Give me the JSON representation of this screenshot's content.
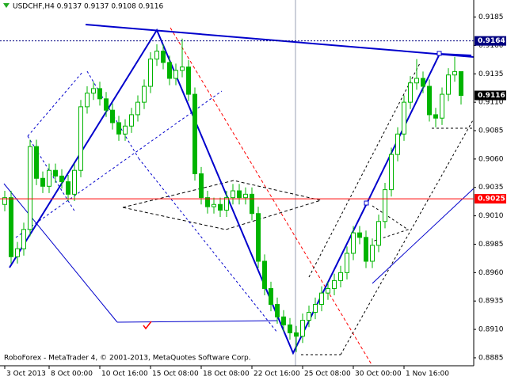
{
  "chart_data": {
    "type": "candlestick",
    "title": "USDCHF,H4 0.9137 0.9137 0.9108 0.9116",
    "footer": "RoboForex - MetaTrader 4, © 2001-2013, MetaQuotes Software Corp.",
    "up_color": "#00b400",
    "down_color": "#00b400",
    "open": [
      0.902,
      0.9026,
      0.8974,
      0.8981,
      0.8998,
      0.9071,
      0.9043,
      0.9036,
      0.905,
      0.9045,
      0.904,
      0.9029,
      0.905,
      0.9106,
      0.9118,
      0.9122,
      0.9113,
      0.9103,
      0.9092,
      0.9082,
      0.9089,
      0.9099,
      0.911,
      0.9124,
      0.9148,
      0.9155,
      0.9145,
      0.9131,
      0.9138,
      0.9141,
      0.9117,
      0.9047,
      0.9026,
      0.9018,
      0.902,
      0.9015,
      0.9026,
      0.9032,
      0.9026,
      0.9029,
      0.9012,
      0.897,
      0.8946,
      0.8932,
      0.8921,
      0.8914,
      0.8907,
      0.8904,
      0.8918,
      0.8925,
      0.8932,
      0.8942,
      0.8946,
      0.8953,
      0.896,
      0.8977,
      0.8995,
      0.8991,
      0.897,
      0.8984,
      0.9005,
      0.9033,
      0.9064,
      0.9082,
      0.911,
      0.9127,
      0.9131,
      0.9124,
      0.9099,
      0.9096,
      0.9117,
      0.9134,
      0.9137
    ],
    "high": [
      0.9032,
      0.9032,
      0.8987,
      0.9004,
      0.9077,
      0.9077,
      0.9049,
      0.9056,
      0.9056,
      0.9051,
      0.9046,
      0.9056,
      0.9112,
      0.9124,
      0.9128,
      0.9128,
      0.9119,
      0.9109,
      0.9098,
      0.9095,
      0.9105,
      0.9116,
      0.913,
      0.9154,
      0.9161,
      0.9161,
      0.9151,
      0.9144,
      0.9166,
      0.9147,
      0.9123,
      0.9053,
      0.9032,
      0.9026,
      0.9026,
      0.9032,
      0.9038,
      0.9038,
      0.9035,
      0.9035,
      0.9018,
      0.8976,
      0.8952,
      0.8938,
      0.8927,
      0.892,
      0.8913,
      0.8924,
      0.8931,
      0.8938,
      0.8948,
      0.8952,
      0.8959,
      0.8966,
      0.8983,
      0.9001,
      0.9001,
      0.8997,
      0.899,
      0.9011,
      0.9039,
      0.907,
      0.9088,
      0.9116,
      0.9133,
      0.9148,
      0.9137,
      0.913,
      0.9105,
      0.9123,
      0.914,
      0.915,
      0.9137
    ],
    "low": [
      0.9014,
      0.8968,
      0.8968,
      0.8975,
      0.8992,
      0.9037,
      0.903,
      0.903,
      0.9039,
      0.9034,
      0.9023,
      0.9023,
      0.9044,
      0.91,
      0.9112,
      0.9107,
      0.9097,
      0.9086,
      0.9076,
      0.9076,
      0.9083,
      0.9093,
      0.9104,
      0.9118,
      0.9142,
      0.9139,
      0.9125,
      0.9125,
      0.9132,
      0.9111,
      0.9041,
      0.902,
      0.9012,
      0.9012,
      0.9009,
      0.9009,
      0.902,
      0.902,
      0.902,
      0.9006,
      0.8964,
      0.894,
      0.8926,
      0.8915,
      0.8908,
      0.8901,
      0.889,
      0.8898,
      0.8912,
      0.8919,
      0.8926,
      0.8936,
      0.894,
      0.8947,
      0.8954,
      0.8971,
      0.8985,
      0.8964,
      0.8964,
      0.8978,
      0.8999,
      0.9027,
      0.9058,
      0.9076,
      0.9104,
      0.9121,
      0.9118,
      0.9093,
      0.9088,
      0.909,
      0.9111,
      0.9128,
      0.9108
    ],
    "close": [
      0.9026,
      0.8974,
      0.8981,
      0.8998,
      0.9071,
      0.9043,
      0.9036,
      0.905,
      0.9045,
      0.904,
      0.9029,
      0.905,
      0.9106,
      0.9118,
      0.9122,
      0.9113,
      0.9103,
      0.9092,
      0.9082,
      0.9089,
      0.9099,
      0.911,
      0.9124,
      0.9148,
      0.9155,
      0.9145,
      0.9131,
      0.9138,
      0.9141,
      0.9117,
      0.9047,
      0.9026,
      0.9018,
      0.902,
      0.9015,
      0.9026,
      0.9032,
      0.9026,
      0.9029,
      0.9012,
      0.897,
      0.8946,
      0.8932,
      0.8921,
      0.8914,
      0.8907,
      0.8904,
      0.8918,
      0.8925,
      0.8932,
      0.8942,
      0.8946,
      0.8953,
      0.896,
      0.8977,
      0.8995,
      0.8991,
      0.897,
      0.8984,
      0.9005,
      0.9033,
      0.9064,
      0.9082,
      0.911,
      0.9127,
      0.9131,
      0.9124,
      0.9099,
      0.9096,
      0.9117,
      0.9134,
      0.9137,
      0.9116
    ],
    "xlim": [
      -0.75,
      74
    ],
    "xticks": [
      {
        "value": 0,
        "label": "3 Oct 2013"
      },
      {
        "value": 7,
        "label": "8 Oct 00:00"
      },
      {
        "value": 15,
        "label": "10 Oct 16:00"
      },
      {
        "value": 23,
        "label": "15 Oct 08:00"
      },
      {
        "value": 31,
        "label": "18 Oct 08:00"
      },
      {
        "value": 39,
        "label": "22 Oct 16:00"
      },
      {
        "value": 47,
        "label": "25 Oct 08:00"
      },
      {
        "value": 55,
        "label": "30 Oct 00:00"
      },
      {
        "value": 63,
        "label": "1 Nov 16:00"
      }
    ],
    "ylim": [
      0.8878,
      0.92
    ],
    "yticks": [
      0.9185,
      {
        "value": 0.916,
        "label": "0.9160"
      },
      0.9135,
      {
        "value": 0.911,
        "label": "0.9110"
      },
      0.9085,
      {
        "value": 0.906,
        "label": "0.9060"
      },
      0.9035,
      {
        "value": 0.901,
        "label": "0.9010"
      },
      0.8985,
      {
        "value": 0.896,
        "label": "0.8960"
      },
      0.8935,
      {
        "value": 0.891,
        "label": "0.8910"
      },
      0.8885
    ],
    "levels": [
      {
        "value": 0.9164,
        "color": "#000080",
        "line": "dotted"
      },
      {
        "value": 0.9116,
        "color": "#000000",
        "line": "none"
      },
      {
        "value": 0.9025,
        "color": "#ff0000",
        "line": "solid"
      }
    ]
  }
}
